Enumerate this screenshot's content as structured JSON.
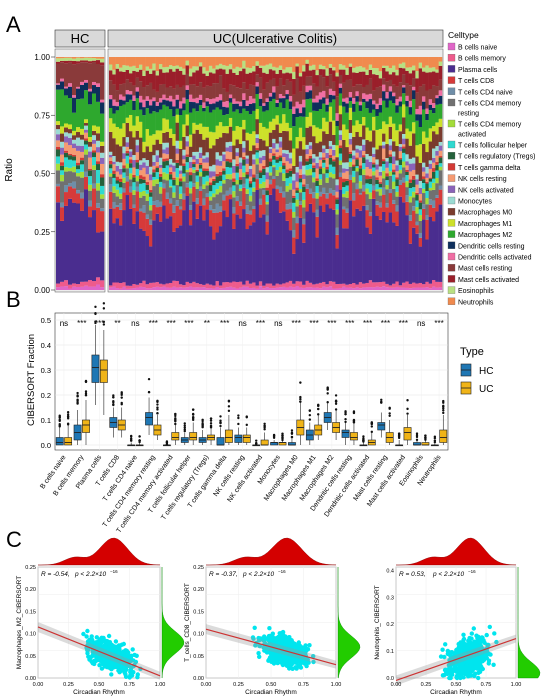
{
  "panel_labels": {
    "a": "A",
    "b": "B",
    "c": "C"
  },
  "chart_data": [
    {
      "type": "bar",
      "subtype": "stacked-100-per-sample",
      "strip_labels": [
        "HC",
        "UC(Ulcerative Colitis)"
      ],
      "ylabel": "Ratio",
      "yticks": [
        "0.00",
        "0.25",
        "0.50",
        "0.75",
        "1.00"
      ],
      "ylim": [
        0,
        1
      ],
      "legend_title": "Celltype",
      "legend_position": "right",
      "groups": [
        {
          "name": "HC",
          "n_samples": 12
        },
        {
          "name": "UC",
          "n_samples": 100
        }
      ],
      "series": [
        {
          "name": "B cells naive",
          "color": "#e066c8",
          "mean_hc": 0.012,
          "mean_uc": 0.01
        },
        {
          "name": "B cells memory",
          "color": "#ee5b8c",
          "mean_hc": 0.02,
          "mean_uc": 0.018
        },
        {
          "name": "Plasma cells",
          "color": "#4a2d8f",
          "mean_hc": 0.3,
          "mean_uc": 0.27
        },
        {
          "name": "T cells CD8",
          "color": "#d63a3a",
          "mean_hc": 0.06,
          "mean_uc": 0.06
        },
        {
          "name": "T cells CD4 naive",
          "color": "#6f8ea8",
          "mean_hc": 0.02,
          "mean_uc": 0.02
        },
        {
          "name": "T cells CD4 memory resting",
          "color": "#707070",
          "mean_hc": 0.05,
          "mean_uc": 0.04
        },
        {
          "name": "T cells CD4 memory activated",
          "color": "#a3dc3a",
          "mean_hc": 0.02,
          "mean_uc": 0.02
        },
        {
          "name": "T cells follicular helper",
          "color": "#2fd9d0",
          "mean_hc": 0.03,
          "mean_uc": 0.025
        },
        {
          "name": "T cells regulatory (Tregs)",
          "color": "#24613b",
          "mean_hc": 0.02,
          "mean_uc": 0.02
        },
        {
          "name": "T cells gamma delta",
          "color": "#d33a36",
          "mean_hc": 0.01,
          "mean_uc": 0.01
        },
        {
          "name": "NK cells resting",
          "color": "#f59a72",
          "mean_hc": 0.03,
          "mean_uc": 0.025
        },
        {
          "name": "NK cells activated",
          "color": "#8a63b8",
          "mean_hc": 0.02,
          "mean_uc": 0.02
        },
        {
          "name": "Monocytes",
          "color": "#9bdbd3",
          "mean_hc": 0.02,
          "mean_uc": 0.02
        },
        {
          "name": "Macrophages M0",
          "color": "#7a3b2e",
          "mean_hc": 0.02,
          "mean_uc": 0.06
        },
        {
          "name": "Macrophages M1",
          "color": "#cde02a",
          "mean_hc": 0.02,
          "mean_uc": 0.05
        },
        {
          "name": "Macrophages M2",
          "color": "#2ea82e",
          "mean_hc": 0.11,
          "mean_uc": 0.07
        },
        {
          "name": "Dendritic cells resting",
          "color": "#0e2f5c",
          "mean_hc": 0.04,
          "mean_uc": 0.03
        },
        {
          "name": "Dendritic cells activated",
          "color": "#f06ea3",
          "mean_hc": 0.01,
          "mean_uc": 0.02
        },
        {
          "name": "Mast cells resting",
          "color": "#8a3a3a",
          "mean_hc": 0.08,
          "mean_uc": 0.05
        },
        {
          "name": "Mast cells activated",
          "color": "#9a1f2a",
          "mean_hc": 0.01,
          "mean_uc": 0.05
        },
        {
          "name": "Eosinophils",
          "color": "#b9e082",
          "mean_hc": 0.01,
          "mean_uc": 0.02
        },
        {
          "name": "Neutrophils",
          "color": "#f08a4e",
          "mean_hc": 0.005,
          "mean_uc": 0.04
        }
      ]
    },
    {
      "type": "box",
      "ylabel": "CIBERSORT Fraction",
      "ylim": [
        0,
        0.6
      ],
      "yticks": [
        "0.0",
        "0.1",
        "0.2",
        "0.3",
        "0.4",
        "0.5"
      ],
      "legend_title": "Type",
      "legend_position": "right",
      "series": [
        {
          "name": "HC",
          "color": "#1f77b4"
        },
        {
          "name": "UC",
          "color": "#f0b418"
        }
      ],
      "categories": [
        "B cells naive",
        "B cells memory",
        "Plasma cells",
        "T cells CD8",
        "T cells CD4 naive",
        "T cells CD4 memory resting",
        "T cells CD4 memory activated",
        "T cells follicular helper",
        "T cells regulatory (Tregs)",
        "T cells gamma delta",
        "NK cells resting",
        "NK cells activated",
        "Monocytes",
        "Macrophages M0",
        "Macrophages M1",
        "Macrophages M2",
        "Dendritic cells resting",
        "Dendritic cells activated",
        "Mast cells resting",
        "Mast cells activated",
        "Eosinophils",
        "Neutrophils"
      ],
      "significance": [
        "ns",
        "***",
        "***",
        "**",
        "ns",
        "***",
        "***",
        "***",
        "**",
        "***",
        "ns",
        "***",
        "ns",
        "***",
        "***",
        "***",
        "***",
        "***",
        "***",
        "***",
        "ns",
        "***"
      ],
      "hc": [
        [
          0.0,
          0.0,
          0.01,
          0.03,
          0.07
        ],
        [
          0.0,
          0.02,
          0.05,
          0.08,
          0.14
        ],
        [
          0.16,
          0.25,
          0.31,
          0.36,
          0.48
        ],
        [
          0.03,
          0.07,
          0.09,
          0.11,
          0.15
        ],
        [
          0.0,
          0.0,
          0.0,
          0.0,
          0.01
        ],
        [
          0.04,
          0.08,
          0.11,
          0.13,
          0.19
        ],
        [
          0.0,
          0.0,
          0.0,
          0.0,
          0.0
        ],
        [
          0.0,
          0.01,
          0.02,
          0.03,
          0.05
        ],
        [
          0.0,
          0.01,
          0.02,
          0.03,
          0.06
        ],
        [
          0.0,
          0.0,
          0.0,
          0.03,
          0.07
        ],
        [
          0.0,
          0.01,
          0.03,
          0.04,
          0.07
        ],
        [
          0.0,
          0.0,
          0.0,
          0.0,
          0.0
        ],
        [
          0.0,
          0.0,
          0.01,
          0.01,
          0.02
        ],
        [
          0.0,
          0.0,
          0.0,
          0.01,
          0.03
        ],
        [
          0.0,
          0.02,
          0.04,
          0.06,
          0.09
        ],
        [
          0.06,
          0.09,
          0.11,
          0.13,
          0.17
        ],
        [
          0.0,
          0.03,
          0.05,
          0.06,
          0.09
        ],
        [
          0.0,
          0.0,
          0.0,
          0.0,
          0.01
        ],
        [
          0.03,
          0.06,
          0.08,
          0.09,
          0.13
        ],
        [
          0.0,
          0.0,
          0.0,
          0.0,
          0.02
        ],
        [
          0.0,
          0.0,
          0.0,
          0.01,
          0.02
        ],
        [
          0.0,
          0.0,
          0.0,
          0.0,
          0.01
        ]
      ],
      "uc": [
        [
          0.0,
          0.0,
          0.01,
          0.03,
          0.08
        ],
        [
          0.0,
          0.05,
          0.08,
          0.1,
          0.18
        ],
        [
          0.12,
          0.25,
          0.3,
          0.34,
          0.46
        ],
        [
          0.03,
          0.06,
          0.08,
          0.1,
          0.15
        ],
        [
          0.0,
          0.0,
          0.0,
          0.0,
          0.01
        ],
        [
          0.02,
          0.04,
          0.06,
          0.08,
          0.12
        ],
        [
          0.0,
          0.02,
          0.03,
          0.05,
          0.08
        ],
        [
          0.0,
          0.02,
          0.03,
          0.05,
          0.09
        ],
        [
          0.0,
          0.02,
          0.03,
          0.04,
          0.07
        ],
        [
          0.0,
          0.01,
          0.03,
          0.06,
          0.12
        ],
        [
          0.0,
          0.01,
          0.03,
          0.04,
          0.07
        ],
        [
          0.0,
          0.0,
          0.0,
          0.02,
          0.05
        ],
        [
          0.0,
          0.0,
          0.01,
          0.01,
          0.02
        ],
        [
          0.0,
          0.04,
          0.07,
          0.1,
          0.17
        ],
        [
          0.02,
          0.04,
          0.06,
          0.08,
          0.12
        ],
        [
          0.02,
          0.05,
          0.07,
          0.09,
          0.14
        ],
        [
          0.0,
          0.02,
          0.03,
          0.05,
          0.09
        ],
        [
          0.0,
          0.0,
          0.01,
          0.02,
          0.05
        ],
        [
          0.0,
          0.01,
          0.03,
          0.05,
          0.1
        ],
        [
          0.0,
          0.02,
          0.05,
          0.07,
          0.12
        ],
        [
          0.0,
          0.0,
          0.0,
          0.01,
          0.02
        ],
        [
          0.0,
          0.01,
          0.03,
          0.06,
          0.12
        ]
      ]
    },
    {
      "type": "scatter",
      "xlabel": "Circadian Rhythm",
      "ylabel": "Macrophages_M2_CIBERSORT",
      "stat_r": "R = -0.54,",
      "stat_p": "p < 2.2×10",
      "stat_exp": "−16",
      "xticks": [
        "0.00",
        "0.25",
        "0.50",
        "0.75",
        "1.00"
      ],
      "yticks": [
        "0.00",
        "0.05",
        "0.10",
        "0.15",
        "0.20",
        "0.25"
      ],
      "xlim": [
        0,
        1
      ],
      "ylim": [
        0,
        0.25
      ],
      "fit": {
        "x0": 0.0,
        "y0": 0.115,
        "x1": 1.0,
        "y1": 0.005
      },
      "point_color": "#00e5ee",
      "fit_color": "#cc3333",
      "top_density_color": "#d40000",
      "right_density_color": "#22cc00",
      "top_density_peak": 0.62,
      "right_density_peak": 0.08
    },
    {
      "type": "scatter",
      "xlabel": "Circadian Rhythm",
      "ylabel": "T_cells_CD8_CIBERSORT",
      "stat_r": "R = -0.37,",
      "stat_p": "p < 2.2×10",
      "stat_exp": "−16",
      "xticks": [
        "0.00",
        "0.25",
        "0.50",
        "0.75",
        "1.00"
      ],
      "yticks": [
        "0.00",
        "0.05",
        "0.10",
        "0.15",
        "0.20",
        "0.25"
      ],
      "xlim": [
        0,
        1
      ],
      "ylim": [
        0,
        0.25
      ],
      "fit": {
        "x0": 0.0,
        "y0": 0.11,
        "x1": 1.0,
        "y1": 0.03
      },
      "point_color": "#00e5ee",
      "fit_color": "#cc3333",
      "top_density_color": "#d40000",
      "right_density_color": "#22cc00",
      "top_density_peak": 0.62,
      "right_density_peak": 0.07
    },
    {
      "type": "scatter",
      "xlabel": "Circadian Rhythm",
      "ylabel": "Neutrophils_CIBERSORT",
      "stat_r": "R = 0.53,",
      "stat_p": "p < 2.2×10",
      "stat_exp": "−16",
      "xticks": [
        "0.00",
        "0.25",
        "0.50",
        "0.75",
        "1.00"
      ],
      "yticks": [
        "0.0",
        "0.1",
        "0.2",
        "0.3",
        "0.4"
      ],
      "xlim": [
        0,
        1
      ],
      "ylim": [
        0,
        0.45
      ],
      "fit": {
        "x0": 0.0,
        "y0": -0.01,
        "x1": 1.0,
        "y1": 0.16
      },
      "point_color": "#00e5ee",
      "fit_color": "#cc3333",
      "top_density_color": "#d40000",
      "right_density_color": "#22cc00",
      "top_density_peak": 0.62,
      "right_density_peak": 0.02
    }
  ]
}
